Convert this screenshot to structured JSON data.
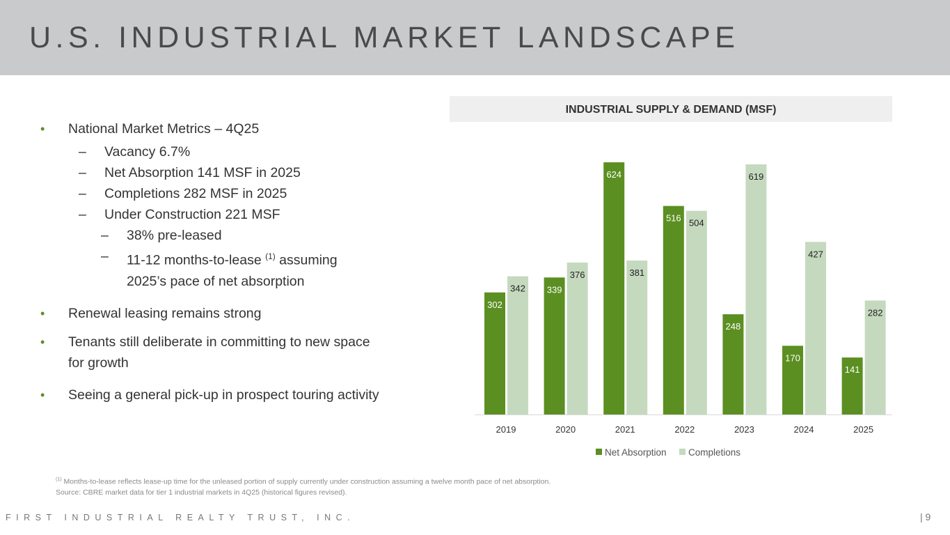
{
  "header": {
    "title": "U.S. INDUSTRIAL MARKET LANDSCAPE"
  },
  "bullets": {
    "b1": "National Market Metrics – 4Q25",
    "s1": "Vacancy 6.7%",
    "s2": "Net Absorption  141 MSF in 2025",
    "s3": "Completions 282 MSF in 2025",
    "s4": "Under Construction 221 MSF",
    "t1": "38% pre-leased",
    "t2a": "11-12 months-to-lease ",
    "t2sup": "(1)",
    "t2b": " assuming",
    "t2c": "2025’s pace of net absorption",
    "b2": "Renewal leasing remains strong",
    "b3a": "Tenants still deliberate in committing to new space",
    "b3b": "for growth",
    "b4": "Seeing a general pick-up in prospect touring activity"
  },
  "chart_data": {
    "type": "bar",
    "title": "INDUSTRIAL SUPPLY & DEMAND (MSF)",
    "categories": [
      "2019",
      "2020",
      "2021",
      "2022",
      "2023",
      "2024",
      "2025"
    ],
    "series": [
      {
        "name": "Net Absorption",
        "color": "#5b8f22",
        "values": [
          302,
          339,
          624,
          516,
          248,
          170,
          141
        ]
      },
      {
        "name": "Completions",
        "color": "#c5d9bf",
        "values": [
          342,
          376,
          381,
          504,
          619,
          427,
          282
        ]
      }
    ],
    "ylim": [
      0,
      624
    ],
    "grid": false,
    "legend": "bottom"
  },
  "footer": {
    "note_sup": "(1)",
    "note": " Months-to-lease reflects lease-up time for the unleased portion of supply currently under construction assuming a twelve month pace of net absorption.",
    "source": "Source: CBRE market data for tier 1 industrial markets in 4Q25 (historical figures revised).",
    "brand": "FIRST INDUSTRIAL REALTY TRUST, INC.",
    "page": "|   9"
  }
}
